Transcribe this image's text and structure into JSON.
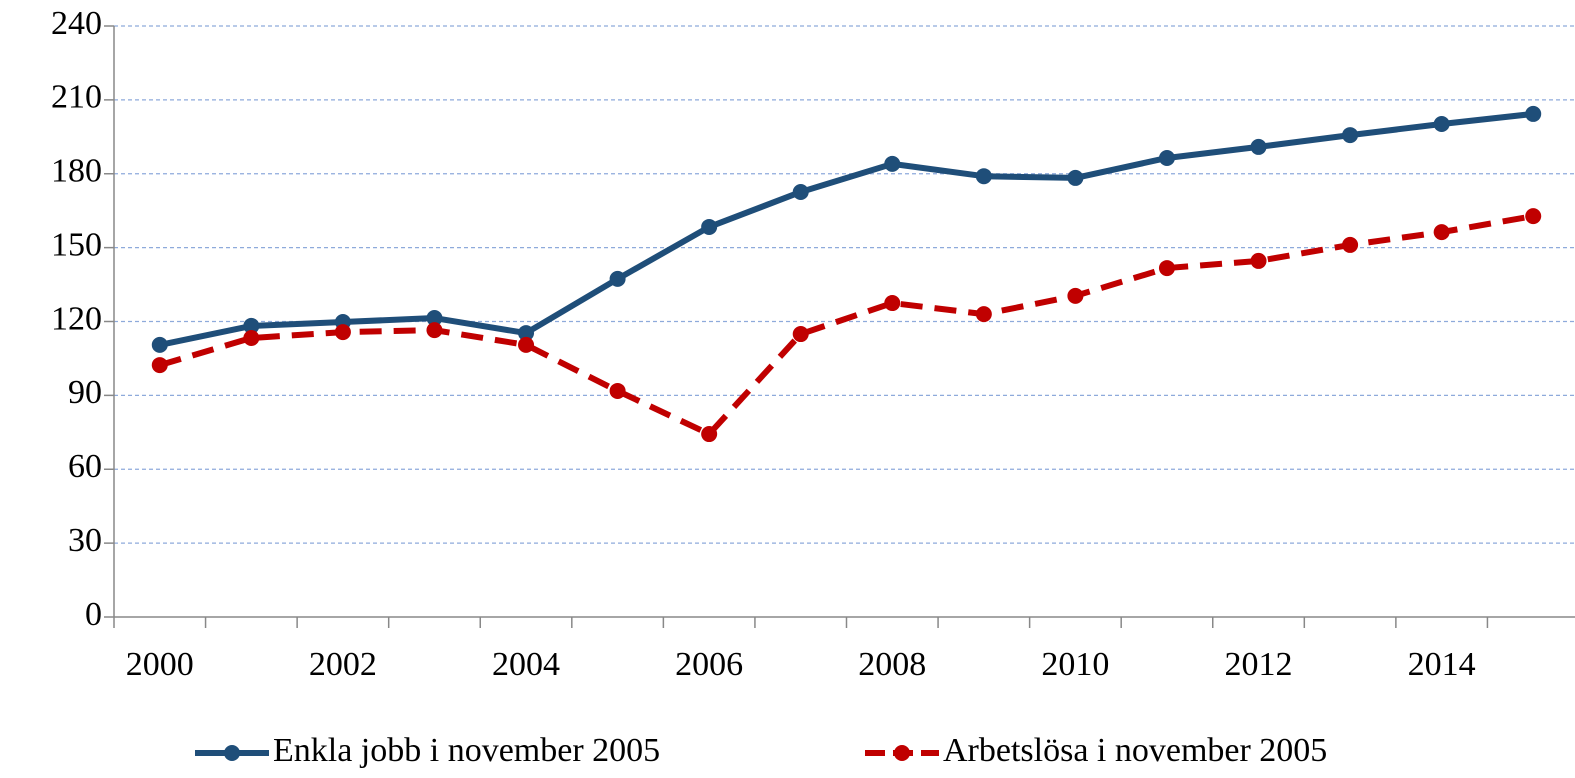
{
  "chart_data": {
    "type": "line",
    "categories": [
      "2000",
      null,
      "2002",
      null,
      "2004",
      null,
      "2006",
      null,
      "2008",
      null,
      "2010",
      null,
      "2012",
      null,
      "2014",
      null
    ],
    "series": [
      {
        "name": "Enkla jobb i november 2005",
        "color": "#1f4e79",
        "line_style": "solid",
        "values": [
          110.5,
          118.2,
          119.8,
          121.4,
          115.3,
          137.3,
          158.4,
          172.6,
          184,
          179,
          178.3,
          186.4,
          190.9,
          195.7,
          200.2,
          204.3
        ]
      },
      {
        "name": "Arbetslösa i november 2005",
        "color": "#c00000",
        "line_style": "dashed",
        "values": [
          102.3,
          113.3,
          115.7,
          116.5,
          110.5,
          91.8,
          74.3,
          114.9,
          127.5,
          123,
          130.4,
          141.7,
          144.6,
          151.1,
          156.3,
          162.8
        ]
      }
    ],
    "ylim": [
      0,
      240
    ],
    "yticks": [
      0,
      30,
      60,
      90,
      120,
      150,
      180,
      210,
      240
    ],
    "grid": true,
    "legend": "bottom"
  }
}
